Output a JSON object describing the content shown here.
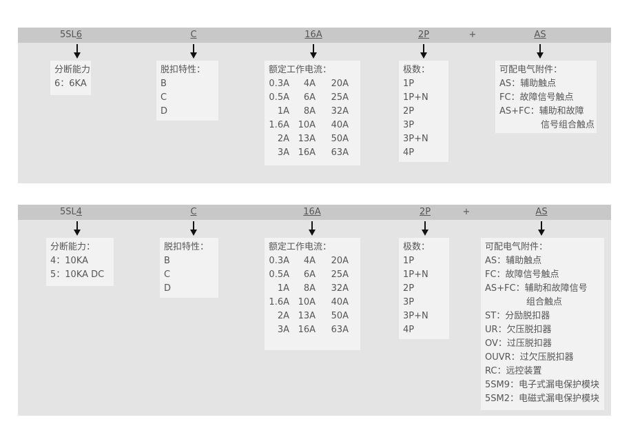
{
  "panels": [
    {
      "codes": {
        "series_prefix": "5SL",
        "series_digit": "6",
        "trip": "C",
        "current": "16A",
        "poles": "2P",
        "plus": "+",
        "accessory": "AS"
      },
      "breaking": {
        "title": "分断能力",
        "items": [
          "6：6KA"
        ]
      },
      "trip": {
        "title": "脱扣特性：",
        "items": [
          "B",
          "C",
          "D"
        ]
      },
      "current": {
        "title": "额定工作电流：",
        "rows": [
          [
            "0.3A",
            "4A",
            "20A"
          ],
          [
            "0.5A",
            "6A",
            "25A"
          ],
          [
            "1A",
            "8A",
            "32A"
          ],
          [
            "1.6A",
            "10A",
            "40A"
          ],
          [
            "2A",
            "13A",
            "50A"
          ],
          [
            "3A",
            "16A",
            "63A"
          ]
        ]
      },
      "poles": {
        "title": "极数：",
        "items": [
          "1P",
          "1P+N",
          "2P",
          "3P",
          "3P+N",
          "4P"
        ]
      },
      "accessory": {
        "title": "可配电气附件：",
        "items": [
          "AS：辅助触点",
          "FC：故障信号触点",
          "AS+FC：辅助和故障",
          "信号组合触点"
        ]
      }
    },
    {
      "codes": {
        "series_prefix": "5SL",
        "series_digit": "4",
        "trip": "C",
        "current": "16A",
        "poles": "2P",
        "plus": "+",
        "accessory": "AS"
      },
      "breaking": {
        "title": "分断能力：",
        "items": [
          "4：10KA",
          "5：10KA DC"
        ]
      },
      "trip": {
        "title": "脱扣特性：",
        "items": [
          "B",
          "C",
          "D"
        ]
      },
      "current": {
        "title": "额定工作电流：",
        "rows": [
          [
            "0.3A",
            "4A",
            "20A"
          ],
          [
            "0.5A",
            "6A",
            "25A"
          ],
          [
            "1A",
            "8A",
            "32A"
          ],
          [
            "1.6A",
            "10A",
            "40A"
          ],
          [
            "2A",
            "13A",
            "50A"
          ],
          [
            "3A",
            "16A",
            "63A"
          ]
        ]
      },
      "poles": {
        "title": "极数：",
        "items": [
          "1P",
          "1P+N",
          "2P",
          "3P",
          "3P+N",
          "4P"
        ]
      },
      "accessory": {
        "title": "可配电气附件：",
        "items": [
          "AS：辅助触点",
          "FC：故障信号触点",
          "AS+FC：辅助和故障信号",
          "组合触点",
          "ST：分励脱扣器",
          "UR：欠压脱扣器",
          "OV：过压脱扣器",
          "OUVR：过欠压脱扣器",
          "RC：远控装置",
          "5SM9：电子式漏电保护模块",
          "5SM2：电磁式漏电保护模块"
        ]
      }
    }
  ]
}
